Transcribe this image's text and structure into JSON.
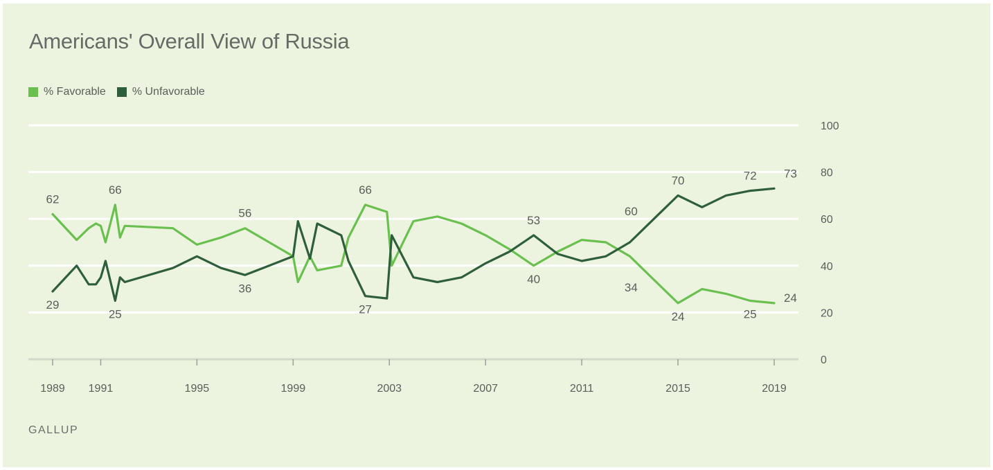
{
  "colors": {
    "background": "#ecf3df",
    "favorable": "#6ac04f",
    "unfavorable": "#2f5e3c",
    "grid": "#ffffff"
  },
  "chart_data": {
    "type": "line",
    "title": "Americans' Overall View of Russia",
    "source": "GALLUP",
    "xlabel": "",
    "ylabel": "",
    "xlim": [
      1988.8,
      2019.8
    ],
    "ylim": [
      0,
      100
    ],
    "y_ticks": [
      0,
      20,
      40,
      60,
      80,
      100
    ],
    "x_ticks": [
      1989,
      1991,
      1995,
      1999,
      2003,
      2007,
      2011,
      2015,
      2019
    ],
    "grid": true,
    "legend_position": "top-left",
    "series": [
      {
        "name": "% Favorable",
        "color": "#6ac04f",
        "x": [
          1989.0,
          1990.0,
          1990.5,
          1990.8,
          1991.0,
          1991.2,
          1991.6,
          1991.8,
          1992.0,
          1994.0,
          1995.0,
          1996.0,
          1997.0,
          1999.0,
          1999.2,
          1999.7,
          2000.0,
          2001.0,
          2001.3,
          2002.0,
          2002.9,
          2003.1,
          2004.0,
          2005.0,
          2006.0,
          2007.0,
          2008.0,
          2009.0,
          2010.0,
          2011.0,
          2012.0,
          2013.0,
          2014.0,
          2015.0,
          2016.0,
          2017.0,
          2018.0,
          2019.0
        ],
        "y": [
          62,
          51,
          56,
          58,
          57,
          50,
          66,
          52,
          57,
          56,
          49,
          52,
          56,
          44,
          33,
          44,
          38,
          40,
          52,
          66,
          63,
          40,
          59,
          61,
          58,
          53,
          47,
          40,
          46,
          51,
          50,
          44,
          34,
          24,
          30,
          28,
          25,
          24
        ]
      },
      {
        "name": "% Unfavorable",
        "color": "#2f5e3c",
        "x": [
          1989.0,
          1990.0,
          1990.5,
          1990.8,
          1991.0,
          1991.2,
          1991.6,
          1991.8,
          1992.0,
          1994.0,
          1995.0,
          1996.0,
          1997.0,
          1999.0,
          1999.2,
          1999.7,
          2000.0,
          2001.0,
          2001.3,
          2002.0,
          2002.9,
          2003.1,
          2004.0,
          2005.0,
          2006.0,
          2007.0,
          2008.0,
          2009.0,
          2010.0,
          2011.0,
          2012.0,
          2013.0,
          2014.0,
          2015.0,
          2016.0,
          2017.0,
          2018.0,
          2019.0
        ],
        "y": [
          29,
          40,
          32,
          32,
          35,
          42,
          25,
          35,
          33,
          39,
          44,
          39,
          36,
          44,
          59,
          43,
          58,
          53,
          42,
          27,
          26,
          53,
          35,
          33,
          35,
          41,
          46,
          53,
          45,
          42,
          44,
          50,
          60,
          70,
          65,
          70,
          72,
          73
        ]
      }
    ],
    "annotations": [
      {
        "x": 1989,
        "y": 62,
        "text": "62",
        "pos": "above"
      },
      {
        "x": 1989,
        "y": 29,
        "text": "29",
        "pos": "below"
      },
      {
        "x": 1991.6,
        "y": 66,
        "text": "66",
        "pos": "above"
      },
      {
        "x": 1991.6,
        "y": 25,
        "text": "25",
        "pos": "below"
      },
      {
        "x": 1997,
        "y": 56,
        "text": "56",
        "pos": "above"
      },
      {
        "x": 1997,
        "y": 36,
        "text": "36",
        "pos": "below"
      },
      {
        "x": 2002,
        "y": 66,
        "text": "66",
        "pos": "above"
      },
      {
        "x": 2002,
        "y": 27,
        "text": "27",
        "pos": "below"
      },
      {
        "x": 2009,
        "y": 53,
        "text": "53",
        "pos": "above"
      },
      {
        "x": 2009,
        "y": 40,
        "text": "40",
        "pos": "below"
      },
      {
        "x": 2014,
        "y": 60,
        "text": "60",
        "pos": "above-left"
      },
      {
        "x": 2014,
        "y": 34,
        "text": "34",
        "pos": "below-left"
      },
      {
        "x": 2015,
        "y": 70,
        "text": "70",
        "pos": "above"
      },
      {
        "x": 2015,
        "y": 24,
        "text": "24",
        "pos": "below"
      },
      {
        "x": 2018,
        "y": 72,
        "text": "72",
        "pos": "above"
      },
      {
        "x": 2018,
        "y": 25,
        "text": "25",
        "pos": "below"
      },
      {
        "x": 2019,
        "y": 73,
        "text": "73",
        "pos": "right-up"
      },
      {
        "x": 2019,
        "y": 24,
        "text": "24",
        "pos": "right"
      }
    ]
  }
}
